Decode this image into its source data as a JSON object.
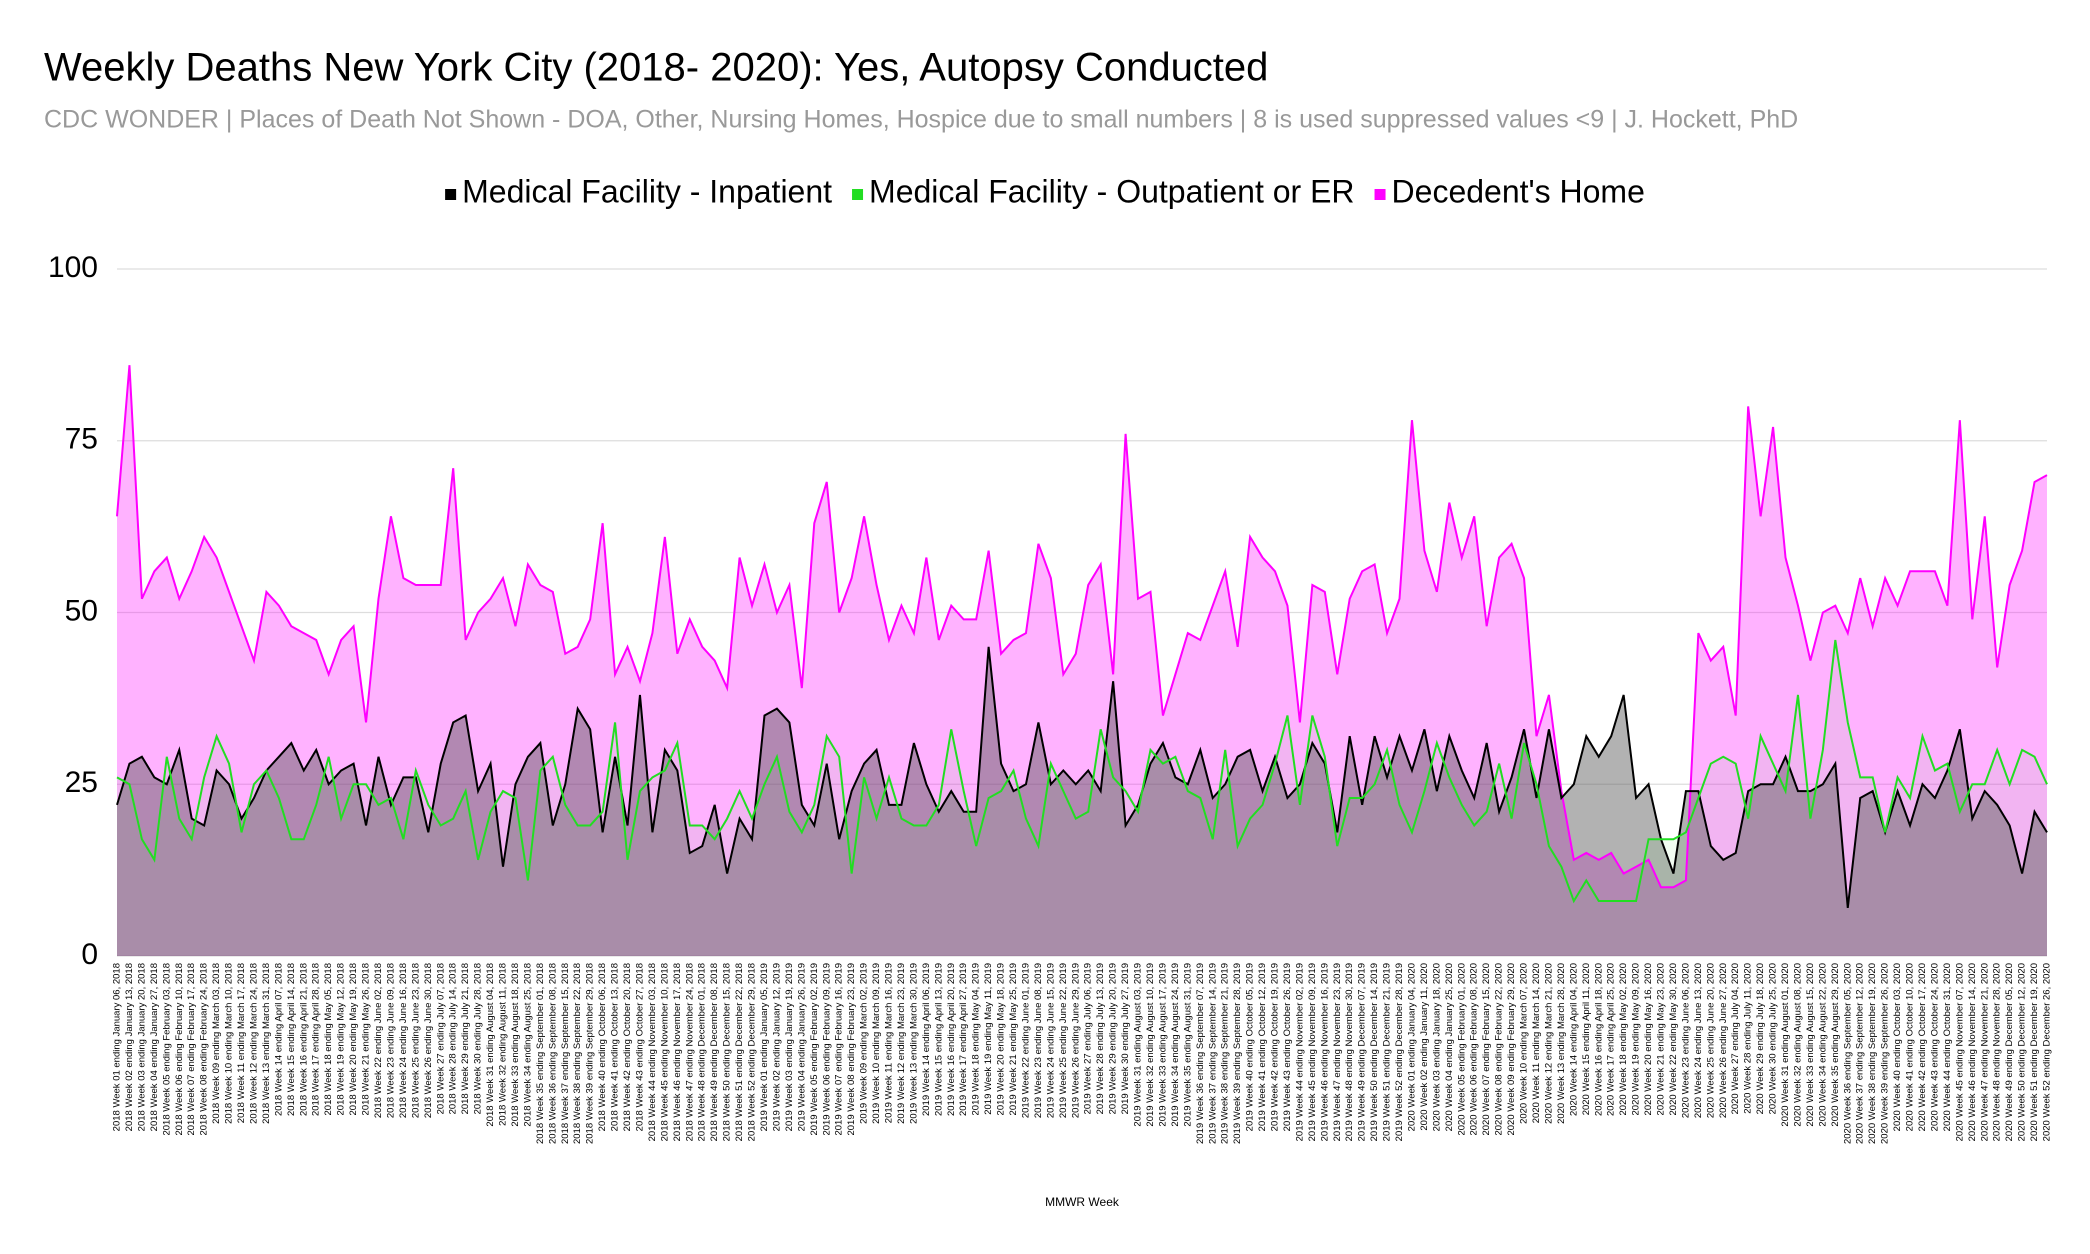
{
  "chart_data": {
    "type": "area",
    "title": "Weekly Deaths New York City (2018- 2020): Yes, Autopsy Conducted",
    "subtitle": "CDC WONDER | Places of Death Not Shown - DOA, Other, Nursing Homes, Hospice due to small numbers | 8 is used suppressed values <9 | J. Hockett, PhD",
    "x_label": "MMWR Week",
    "ylim": [
      0,
      100
    ],
    "yticks": [
      0,
      25,
      50,
      75,
      100
    ],
    "grid": true,
    "legend": "top",
    "categories": [
      "2018 Week 01 ending January 06, 2018",
      "2018 Week 02 ending January 13, 2018",
      "2018 Week 03 ending January 20, 2018",
      "2018 Week 04 ending January 27, 2018",
      "2018 Week 05 ending February 03, 2018",
      "2018 Week 06 ending February 10, 2018",
      "2018 Week 07 ending February 17, 2018",
      "2018 Week 08 ending February 24, 2018",
      "2018 Week 09 ending March 03, 2018",
      "2018 Week 10 ending March 10, 2018",
      "2018 Week 11 ending March 17, 2018",
      "2018 Week 12 ending March 24, 2018",
      "2018 Week 13 ending March 31, 2018",
      "2018 Week 14 ending April 07, 2018",
      "2018 Week 15 ending April 14, 2018",
      "2018 Week 16 ending April 21, 2018",
      "2018 Week 17 ending April 28, 2018",
      "2018 Week 18 ending May 05, 2018",
      "2018 Week 19 ending May 12, 2018",
      "2018 Week 20 ending May 19, 2018",
      "2018 Week 21 ending May 26, 2018",
      "2018 Week 22 ending June 02, 2018",
      "2018 Week 23 ending June 09, 2018",
      "2018 Week 24 ending June 16, 2018",
      "2018 Week 25 ending June 23, 2018",
      "2018 Week 26 ending June 30, 2018",
      "2018 Week 27 ending July 07, 2018",
      "2018 Week 28 ending July 14, 2018",
      "2018 Week 29 ending July 21, 2018",
      "2018 Week 30 ending July 28, 2018",
      "2018 Week 31 ending August 04, 2018",
      "2018 Week 32 ending August 11, 2018",
      "2018 Week 33 ending August 18, 2018",
      "2018 Week 34 ending August 25, 2018",
      "2018 Week 35 ending September 01, 2018",
      "2018 Week 36 ending September 08, 2018",
      "2018 Week 37 ending September 15, 2018",
      "2018 Week 38 ending September 22, 2018",
      "2018 Week 39 ending September 29, 2018",
      "2018 Week 40 ending October 06, 2018",
      "2018 Week 41 ending October 13, 2018",
      "2018 Week 42 ending October 20, 2018",
      "2018 Week 43 ending October 27, 2018",
      "2018 Week 44 ending November 03, 2018",
      "2018 Week 45 ending November 10, 2018",
      "2018 Week 46 ending November 17, 2018",
      "2018 Week 47 ending November 24, 2018",
      "2018 Week 48 ending December 01, 2018",
      "2018 Week 49 ending December 08, 2018",
      "2018 Week 50 ending December 15, 2018",
      "2018 Week 51 ending December 22, 2018",
      "2018 Week 52 ending December 29, 2018",
      "2019 Week 01 ending January 05, 2019",
      "2019 Week 02 ending January 12, 2019",
      "2019 Week 03 ending January 19, 2019",
      "2019 Week 04 ending January 26, 2019",
      "2019 Week 05 ending February 02, 2019",
      "2019 Week 06 ending February 09, 2019",
      "2019 Week 07 ending February 16, 2019",
      "2019 Week 08 ending February 23, 2019",
      "2019 Week 09 ending March 02, 2019",
      "2019 Week 10 ending March 09, 2019",
      "2019 Week 11 ending March 16, 2019",
      "2019 Week 12 ending March 23, 2019",
      "2019 Week 13 ending March 30, 2019",
      "2019 Week 14 ending April 06, 2019",
      "2019 Week 15 ending April 13, 2019",
      "2019 Week 16 ending April 20, 2019",
      "2019 Week 17 ending April 27, 2019",
      "2019 Week 18 ending May 04, 2019",
      "2019 Week 19 ending May 11, 2019",
      "2019 Week 20 ending May 18, 2019",
      "2019 Week 21 ending May 25, 2019",
      "2019 Week 22 ending June 01, 2019",
      "2019 Week 23 ending June 08, 2019",
      "2019 Week 24 ending June 15, 2019",
      "2019 Week 25 ending June 22, 2019",
      "2019 Week 26 ending June 29, 2019",
      "2019 Week 27 ending July 06, 2019",
      "2019 Week 28 ending July 13, 2019",
      "2019 Week 29 ending July 20, 2019",
      "2019 Week 30 ending July 27, 2019",
      "2019 Week 31 ending August 03, 2019",
      "2019 Week 32 ending August 10, 2019",
      "2019 Week 33 ending August 17, 2019",
      "2019 Week 34 ending August 24, 2019",
      "2019 Week 35 ending August 31, 2019",
      "2019 Week 36 ending September 07, 2019",
      "2019 Week 37 ending September 14, 2019",
      "2019 Week 38 ending September 21, 2019",
      "2019 Week 39 ending September 28, 2019",
      "2019 Week 40 ending October 05, 2019",
      "2019 Week 41 ending October 12, 2019",
      "2019 Week 42 ending October 19, 2019",
      "2019 Week 43 ending October 26, 2019",
      "2019 Week 44 ending November 02, 2019",
      "2019 Week 45 ending November 09, 2019",
      "2019 Week 46 ending November 16, 2019",
      "2019 Week 47 ending November 23, 2019",
      "2019 Week 48 ending November 30, 2019",
      "2019 Week 49 ending December 07, 2019",
      "2019 Week 50 ending December 14, 2019",
      "2019 Week 51 ending December 21, 2019",
      "2019 Week 52 ending December 28, 2019",
      "2020 Week 01 ending January 04, 2020",
      "2020 Week 02 ending January 11, 2020",
      "2020 Week 03 ending January 18, 2020",
      "2020 Week 04 ending January 25, 2020",
      "2020 Week 05 ending February 01, 2020",
      "2020 Week 06 ending February 08, 2020",
      "2020 Week 07 ending February 15, 2020",
      "2020 Week 08 ending February 22, 2020",
      "2020 Week 09 ending February 29, 2020",
      "2020 Week 10 ending March 07, 2020",
      "2020 Week 11 ending March 14, 2020",
      "2020 Week 12 ending March 21, 2020",
      "2020 Week 13 ending March 28, 2020",
      "2020 Week 14 ending April 04, 2020",
      "2020 Week 15 ending April 11, 2020",
      "2020 Week 16 ending April 18, 2020",
      "2020 Week 17 ending April 25, 2020",
      "2020 Week 18 ending May 02, 2020",
      "2020 Week 19 ending May 09, 2020",
      "2020 Week 20 ending May 16, 2020",
      "2020 Week 21 ending May 23, 2020",
      "2020 Week 22 ending May 30, 2020",
      "2020 Week 23 ending June 06, 2020",
      "2020 Week 24 ending June 13, 2020",
      "2020 Week 25 ending June 20, 2020",
      "2020 Week 26 ending June 27, 2020",
      "2020 Week 27 ending July 04, 2020",
      "2020 Week 28 ending July 11, 2020",
      "2020 Week 29 ending July 18, 2020",
      "2020 Week 30 ending July 25, 2020",
      "2020 Week 31 ending August 01, 2020",
      "2020 Week 32 ending August 08, 2020",
      "2020 Week 33 ending August 15, 2020",
      "2020 Week 34 ending August 22, 2020",
      "2020 Week 35 ending August 29, 2020",
      "2020 Week 36 ending September 05, 2020",
      "2020 Week 37 ending September 12, 2020",
      "2020 Week 38 ending September 19, 2020",
      "2020 Week 39 ending September 26, 2020",
      "2020 Week 40 ending October 03, 2020",
      "2020 Week 41 ending October 10, 2020",
      "2020 Week 42 ending October 17, 2020",
      "2020 Week 43 ending October 24, 2020",
      "2020 Week 44 ending October 31, 2020",
      "2020 Week 45 ending November 07, 2020",
      "2020 Week 46 ending November 14, 2020",
      "2020 Week 47 ending November 21, 2020",
      "2020 Week 48 ending November 28, 2020",
      "2020 Week 49 ending December 05, 2020",
      "2020 Week 50 ending December 12, 2020",
      "2020 Week 51 ending December 19, 2020",
      "2020 Week 52 ending December 26, 2020"
    ],
    "series": [
      {
        "name": "Medical Facility - Inpatient",
        "color": "#000000",
        "values": [
          22,
          28,
          29,
          26,
          25,
          30,
          20,
          19,
          27,
          25,
          20,
          23,
          27,
          29,
          31,
          27,
          30,
          25,
          27,
          28,
          19,
          29,
          22,
          26,
          26,
          18,
          28,
          34,
          35,
          24,
          28,
          13,
          25,
          29,
          31,
          19,
          25,
          36,
          33,
          18,
          29,
          19,
          38,
          18,
          30,
          27,
          15,
          16,
          22,
          12,
          20,
          17,
          35,
          36,
          34,
          22,
          19,
          28,
          17,
          24,
          28,
          30,
          22,
          22,
          31,
          25,
          21,
          24,
          21,
          21,
          45,
          28,
          24,
          25,
          34,
          25,
          27,
          25,
          27,
          24,
          40,
          19,
          22,
          28,
          31,
          26,
          25,
          30,
          23,
          25,
          29,
          30,
          24,
          29,
          23,
          25,
          31,
          28,
          18,
          32,
          22,
          32,
          26,
          32,
          27,
          33,
          24,
          32,
          27,
          23,
          31,
          21,
          26,
          33,
          23,
          33,
          23,
          25,
          32,
          29,
          32,
          38,
          23,
          25,
          17,
          12,
          24,
          24,
          16,
          14,
          15,
          24,
          25,
          25,
          29,
          24,
          24,
          25,
          28,
          7,
          23,
          24,
          18,
          24,
          19,
          25,
          23,
          27,
          33,
          20,
          24,
          22,
          19,
          12,
          21,
          18
        ]
      },
      {
        "name": "Medical Facility - Outpatient or ER",
        "color": "#22dd22",
        "values": [
          26,
          25,
          17,
          14,
          29,
          20,
          17,
          26,
          32,
          28,
          18,
          25,
          27,
          23,
          17,
          17,
          22,
          29,
          20,
          25,
          25,
          22,
          23,
          17,
          27,
          22,
          19,
          20,
          24,
          14,
          21,
          24,
          23,
          11,
          27,
          29,
          22,
          19,
          19,
          21,
          34,
          14,
          24,
          26,
          27,
          31,
          19,
          19,
          17,
          20,
          24,
          20,
          25,
          29,
          21,
          18,
          22,
          32,
          29,
          12,
          26,
          20,
          26,
          20,
          19,
          19,
          22,
          33,
          24,
          16,
          23,
          24,
          27,
          20,
          16,
          28,
          24,
          20,
          21,
          33,
          26,
          24,
          21,
          30,
          28,
          29,
          24,
          23,
          17,
          30,
          16,
          20,
          22,
          28,
          35,
          22,
          35,
          29,
          16,
          23,
          23,
          25,
          30,
          22,
          18,
          24,
          31,
          26,
          22,
          19,
          21,
          28,
          20,
          31,
          25,
          16,
          13,
          8,
          11,
          8,
          8,
          8,
          8,
          17,
          17,
          17,
          18,
          23,
          28,
          29,
          28,
          20,
          32,
          28,
          24,
          38,
          20,
          30,
          46,
          34,
          26,
          26,
          18,
          26,
          23,
          32,
          27,
          28,
          21,
          25,
          25,
          30,
          25,
          30,
          29,
          25
        ]
      },
      {
        "name": "Decedent's Home",
        "color": "#ff00ff",
        "values": [
          64,
          86,
          52,
          56,
          58,
          52,
          56,
          61,
          58,
          53,
          48,
          43,
          53,
          51,
          48,
          47,
          46,
          41,
          46,
          48,
          34,
          52,
          64,
          55,
          54,
          54,
          54,
          71,
          46,
          50,
          52,
          55,
          48,
          57,
          54,
          53,
          44,
          45,
          49,
          63,
          41,
          45,
          40,
          47,
          61,
          44,
          49,
          45,
          43,
          39,
          58,
          51,
          57,
          50,
          54,
          39,
          63,
          69,
          50,
          55,
          64,
          54,
          46,
          51,
          47,
          58,
          46,
          51,
          49,
          49,
          59,
          44,
          46,
          47,
          60,
          55,
          41,
          44,
          54,
          57,
          41,
          76,
          52,
          53,
          35,
          41,
          47,
          46,
          51,
          56,
          45,
          61,
          58,
          56,
          51,
          34,
          54,
          53,
          41,
          52,
          56,
          57,
          47,
          52,
          78,
          59,
          53,
          66,
          58,
          64,
          48,
          58,
          60,
          55,
          32,
          38,
          24,
          14,
          15,
          14,
          15,
          12,
          13,
          14,
          10,
          10,
          11,
          47,
          43,
          45,
          35,
          80,
          64,
          77,
          58,
          51,
          43,
          50,
          51,
          47,
          55,
          48,
          55,
          51,
          56,
          56,
          56,
          51,
          78,
          49,
          64,
          42,
          54,
          59,
          69,
          70
        ]
      }
    ]
  }
}
